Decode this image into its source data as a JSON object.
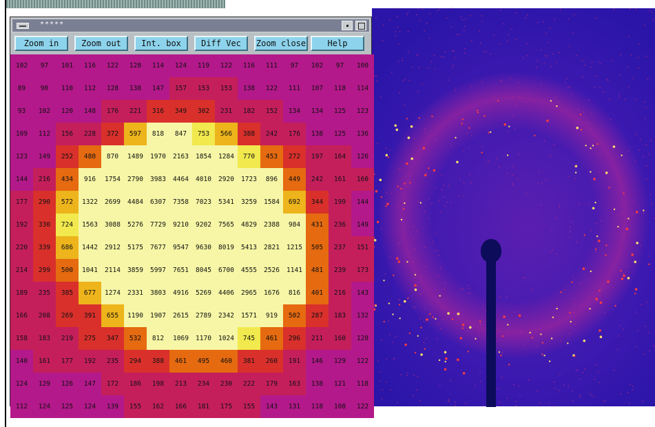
{
  "window": {
    "title": "*****"
  },
  "toolbar": {
    "buttons": [
      "Zoom in",
      "Zoom out",
      "Int. box",
      "Diff Vec",
      "Zoom close",
      "Help"
    ]
  },
  "grid": {
    "rows": [
      [
        102,
        97,
        101,
        116,
        122,
        128,
        114,
        124,
        119,
        122,
        116,
        111,
        97,
        102,
        97,
        100
      ],
      [
        89,
        90,
        110,
        112,
        128,
        138,
        147,
        157,
        153,
        153,
        138,
        122,
        111,
        107,
        118,
        114
      ],
      [
        93,
        102,
        120,
        148,
        176,
        221,
        316,
        349,
        302,
        231,
        182,
        152,
        134,
        134,
        125,
        123
      ],
      [
        109,
        112,
        156,
        228,
        372,
        597,
        818,
        847,
        753,
        566,
        388,
        242,
        176,
        138,
        125,
        136
      ],
      [
        123,
        149,
        252,
        480,
        870,
        1489,
        1970,
        2163,
        1854,
        1284,
        770,
        453,
        272,
        197,
        164,
        126
      ],
      [
        144,
        216,
        434,
        916,
        1754,
        2790,
        3983,
        4464,
        4010,
        2920,
        1723,
        896,
        449,
        242,
        161,
        160
      ],
      [
        177,
        290,
        572,
        1322,
        2699,
        4484,
        6307,
        7358,
        7023,
        5341,
        3259,
        1584,
        692,
        344,
        199,
        144
      ],
      [
        192,
        330,
        724,
        1563,
        3088,
        5276,
        7729,
        9210,
        9202,
        7565,
        4829,
        2388,
        984,
        431,
        236,
        149
      ],
      [
        220,
        339,
        686,
        1442,
        2912,
        5175,
        7677,
        9547,
        9630,
        8019,
        5413,
        2821,
        1215,
        505,
        237,
        151
      ],
      [
        214,
        299,
        500,
        1041,
        2114,
        3859,
        5997,
        7651,
        8045,
        6700,
        4555,
        2526,
        1141,
        481,
        239,
        173
      ],
      [
        189,
        235,
        385,
        677,
        1274,
        2331,
        3803,
        4916,
        5269,
        4406,
        2965,
        1676,
        816,
        401,
        216,
        143
      ],
      [
        166,
        208,
        269,
        391,
        655,
        1190,
        1907,
        2615,
        2789,
        2342,
        1571,
        919,
        502,
        287,
        183,
        132
      ],
      [
        158,
        183,
        219,
        275,
        347,
        532,
        812,
        1069,
        1170,
        1024,
        745,
        461,
        296,
        211,
        160,
        128
      ],
      [
        140,
        161,
        177,
        192,
        235,
        294,
        388,
        461,
        495,
        460,
        381,
        260,
        191,
        146,
        129,
        122
      ],
      [
        124,
        129,
        126,
        147,
        172,
        186,
        198,
        213,
        234,
        230,
        222,
        179,
        163,
        138,
        121,
        118
      ],
      [
        112,
        124,
        125,
        124,
        139,
        155,
        162,
        166,
        181,
        175,
        155,
        143,
        131,
        118,
        108,
        122
      ]
    ]
  },
  "colors": {
    "window_bg": "#b9c0c4",
    "button_bg": "#8dd3ec",
    "scale": [
      "#b3198a",
      "#c41f5b",
      "#d9302c",
      "#e56a10",
      "#edb41b",
      "#f1e94d",
      "#f6f6a6"
    ]
  },
  "icons": {
    "window_menu": "window-menu-icon",
    "minimize": "minimize-icon",
    "maximize": "maximize-icon"
  }
}
